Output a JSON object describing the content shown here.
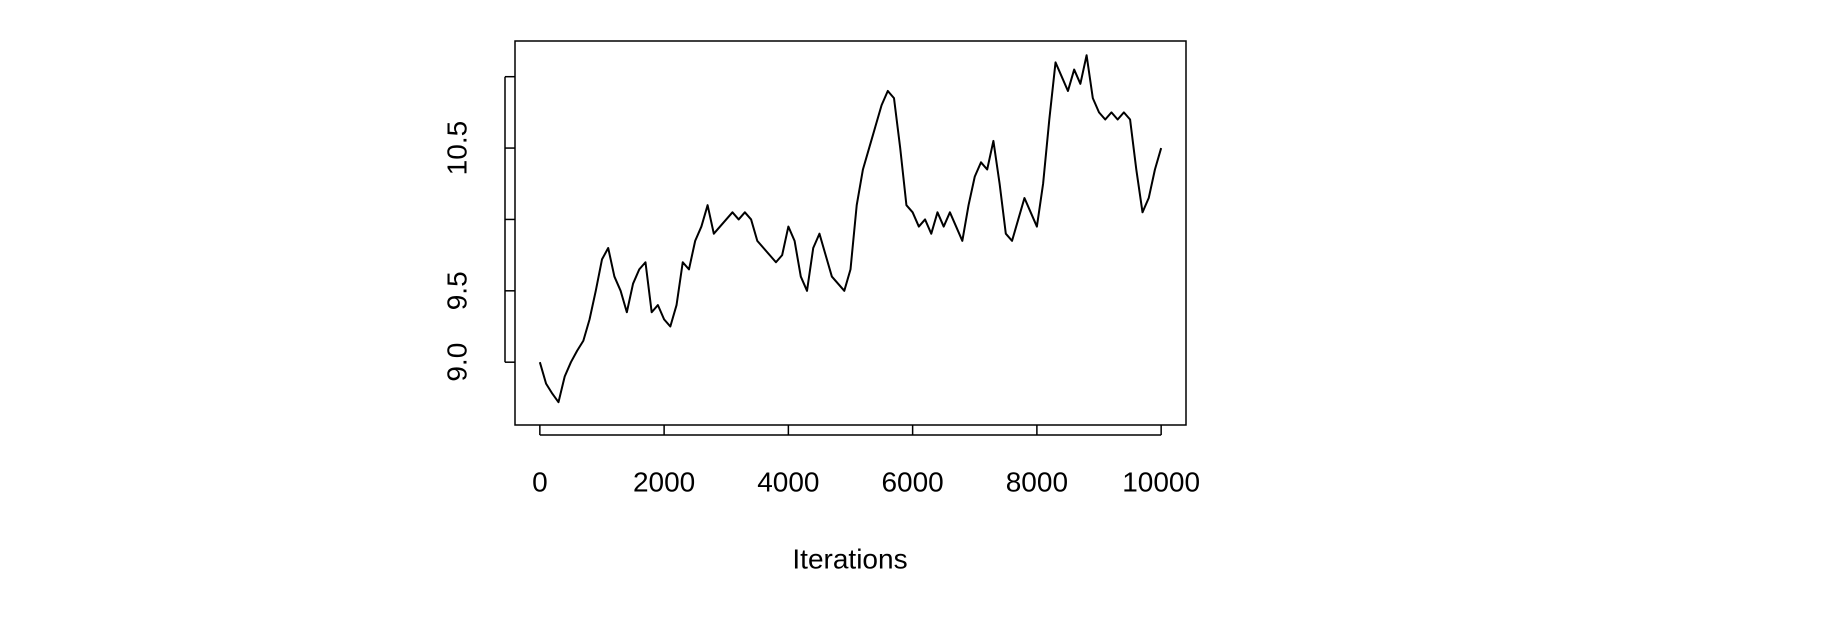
{
  "chart_data": {
    "type": "line",
    "x_label": "Iterations",
    "x": [
      0,
      100,
      200,
      300,
      400,
      500,
      600,
      700,
      800,
      900,
      1000,
      1100,
      1200,
      1300,
      1400,
      1500,
      1600,
      1700,
      1800,
      1900,
      2000,
      2100,
      2200,
      2300,
      2400,
      2500,
      2600,
      2700,
      2800,
      2900,
      3000,
      3100,
      3200,
      3300,
      3400,
      3500,
      3600,
      3700,
      3800,
      3900,
      4000,
      4100,
      4200,
      4300,
      4400,
      4500,
      4600,
      4700,
      4800,
      4900,
      5000,
      5100,
      5200,
      5300,
      5400,
      5500,
      5600,
      5700,
      5800,
      5900,
      6000,
      6100,
      6200,
      6300,
      6400,
      6500,
      6600,
      6700,
      6800,
      6900,
      7000,
      7100,
      7200,
      7300,
      7400,
      7500,
      7600,
      7700,
      7800,
      7900,
      8000,
      8100,
      8200,
      8300,
      8400,
      8500,
      8600,
      8700,
      8800,
      8900,
      9000,
      9100,
      9200,
      9300,
      9400,
      9500,
      9600,
      9700,
      9800,
      9900,
      10000
    ],
    "series": [
      {
        "color": "#000000",
        "values": [
          9.0,
          8.85,
          8.78,
          8.72,
          8.9,
          9.0,
          9.08,
          9.15,
          9.3,
          9.5,
          9.72,
          9.8,
          9.6,
          9.5,
          9.35,
          9.55,
          9.65,
          9.7,
          9.35,
          9.4,
          9.3,
          9.25,
          9.4,
          9.7,
          9.65,
          9.85,
          9.95,
          10.1,
          9.9,
          9.95,
          10.0,
          10.05,
          10.0,
          10.05,
          10.0,
          9.85,
          9.8,
          9.75,
          9.7,
          9.75,
          9.95,
          9.85,
          9.6,
          9.5,
          9.8,
          9.9,
          9.75,
          9.6,
          9.55,
          9.5,
          9.65,
          10.1,
          10.35,
          10.5,
          10.65,
          10.8,
          10.9,
          10.85,
          10.5,
          10.1,
          10.05,
          9.95,
          10.0,
          9.9,
          10.05,
          9.95,
          10.05,
          9.95,
          9.85,
          10.1,
          10.3,
          10.4,
          10.35,
          10.55,
          10.25,
          9.9,
          9.85,
          10.0,
          10.15,
          10.05,
          9.95,
          10.25,
          10.7,
          11.1,
          11.0,
          10.9,
          11.05,
          10.95,
          11.15,
          10.85,
          10.75,
          10.7,
          10.75,
          10.7,
          10.75,
          10.7,
          10.35,
          10.05,
          10.15,
          10.35,
          10.5
        ]
      }
    ],
    "xlim": [
      -400,
      10400
    ],
    "ylim": [
      8.56,
      11.25
    ],
    "xticks": [
      0,
      2000,
      4000,
      6000,
      8000,
      10000
    ],
    "yticks": [
      {
        "value": 9,
        "label": "9.0"
      },
      9.5,
      {
        "value": 10,
        "label": null
      },
      10.5,
      {
        "value": 11,
        "label": null
      }
    ]
  }
}
